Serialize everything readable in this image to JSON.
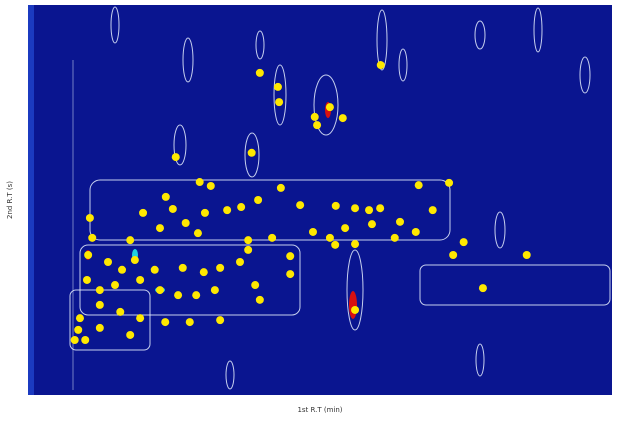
{
  "chart_data": {
    "type": "scatter",
    "x_label": "1st R.T (min)",
    "y_label": "2nd R.T (s)",
    "color": "#ffe800",
    "xlim": [
      0,
      100
    ],
    "ylim": [
      0,
      100
    ],
    "x": [
      39.7,
      42.8,
      43.0,
      60.4,
      49.1,
      51.7,
      53.9,
      49.5,
      25.3,
      38.3,
      29.4,
      31.3,
      43.3,
      66.9,
      72.1,
      10.6,
      19.7,
      23.6,
      24.8,
      27.0,
      30.3,
      34.1,
      36.5,
      39.4,
      46.6,
      52.7,
      56.0,
      58.4,
      60.3,
      63.7,
      69.3,
      48.8,
      51.7,
      54.3,
      58.9,
      66.4,
      74.6,
      11.0,
      17.5,
      22.6,
      29.1,
      37.7,
      41.8,
      44.9,
      52.6,
      56.0,
      62.8,
      72.8,
      85.4,
      10.3,
      13.7,
      16.1,
      18.3,
      21.7,
      26.5,
      30.1,
      32.9,
      36.3,
      37.7,
      44.9,
      10.1,
      12.3,
      14.9,
      19.2,
      22.6,
      25.7,
      28.8,
      32.0,
      38.9,
      77.9,
      8.9,
      12.3,
      15.8,
      19.2,
      23.5,
      27.7,
      32.9,
      39.7,
      56.0,
      8.6,
      9.8,
      12.3,
      17.5,
      8.0
    ],
    "y": [
      82.6,
      79.0,
      75.1,
      84.6,
      71.3,
      73.8,
      71.0,
      69.2,
      61.0,
      62.1,
      54.6,
      53.6,
      53.1,
      53.8,
      54.4,
      45.4,
      46.7,
      50.8,
      47.7,
      44.1,
      46.7,
      47.4,
      48.2,
      50.0,
      48.7,
      48.5,
      47.9,
      47.4,
      47.9,
      44.4,
      47.4,
      41.8,
      40.3,
      42.8,
      43.8,
      41.8,
      39.2,
      40.3,
      39.7,
      42.8,
      41.5,
      39.7,
      40.3,
      35.6,
      38.5,
      38.7,
      40.3,
      35.9,
      35.9,
      35.9,
      34.1,
      32.1,
      34.6,
      32.1,
      32.6,
      31.5,
      32.6,
      34.1,
      37.2,
      31.0,
      29.5,
      26.9,
      28.2,
      29.5,
      26.9,
      25.6,
      25.6,
      26.9,
      28.2,
      27.4,
      19.7,
      23.1,
      21.3,
      19.7,
      18.7,
      18.7,
      19.2,
      24.4,
      21.8,
      16.7,
      14.1,
      17.2,
      15.4,
      14.1
    ]
  }
}
